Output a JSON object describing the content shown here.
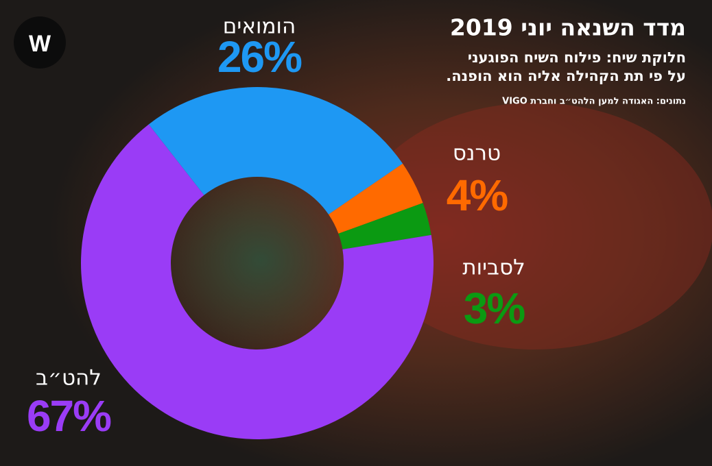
{
  "logo": "W",
  "header": {
    "title": "מדד השנאה יוני 2019",
    "subtitle": [
      "חלוקת שיח: פילוח השיח הפוגעני",
      "על פי תת הקהילה אליה הוא הופנה."
    ],
    "source": "נתונים: האגודה למען הלהט״ב וחברת VIGO"
  },
  "chart_data": {
    "type": "donut",
    "categories": [
      "הומואים",
      "טרנס",
      "לסביות",
      "להט״ב"
    ],
    "values": [
      26,
      4,
      3,
      67
    ],
    "value_labels": [
      "26%",
      "4%",
      "3%",
      "67%"
    ],
    "colors": [
      "#1e98f3",
      "#ff6a00",
      "#0b9a12",
      "#9a3cf6"
    ]
  }
}
